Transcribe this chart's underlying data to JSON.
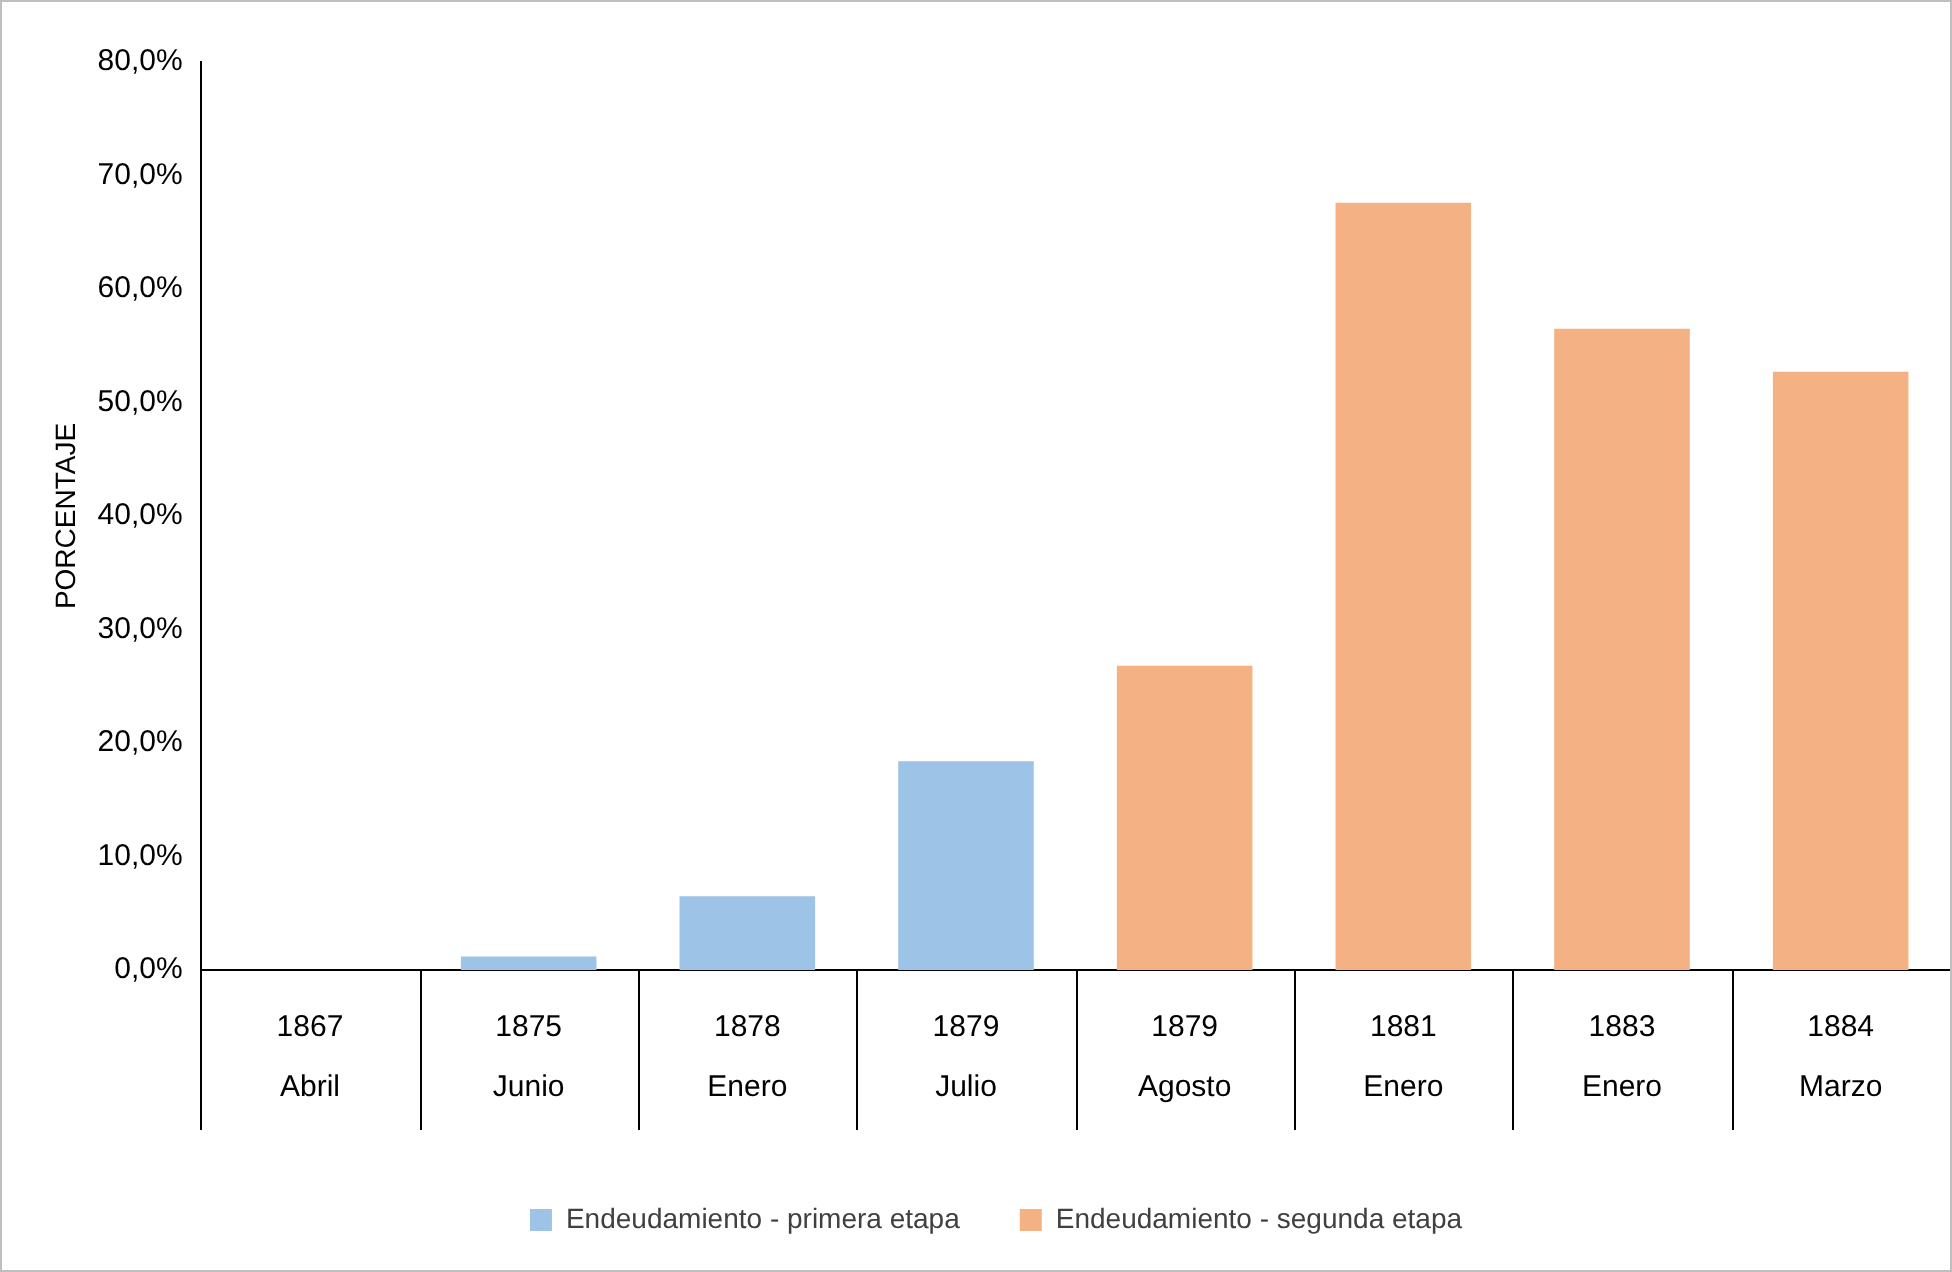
{
  "chart_data": {
    "type": "bar",
    "ylabel": "PORCENTAJE",
    "categories": [
      "1867 Abril",
      "1875 Junio",
      "1878 Enero",
      "1879 Julio",
      "1879 Agosto",
      "1881 Enero",
      "1883 Enero",
      "1884 Marzo"
    ],
    "series": [
      {
        "name": "Endeudamiento - primera etapa",
        "color": "#9dc3e6",
        "values": [
          0,
          1.2,
          6.5,
          18.4,
          null,
          null,
          null,
          null
        ]
      },
      {
        "name": "Endeudamiento - segunda etapa",
        "color": "#f4b183",
        "values": [
          null,
          null,
          null,
          null,
          26.8,
          67.6,
          56.5,
          52.7
        ]
      }
    ],
    "ylim": [
      0,
      80
    ],
    "yticks": [
      {
        "value": 0,
        "label": "0,0%"
      },
      {
        "value": 10,
        "label": "10,0%"
      },
      {
        "value": 20,
        "label": "20,0%"
      },
      {
        "value": 30,
        "label": "30,0%"
      },
      {
        "value": 40,
        "label": "40,0%"
      },
      {
        "value": 50,
        "label": "50,0%"
      },
      {
        "value": 60,
        "label": "60,0%"
      },
      {
        "value": 70,
        "label": "70,0%"
      },
      {
        "value": 80,
        "label": "80,0%"
      }
    ],
    "grid": false,
    "legend": "bottom"
  }
}
